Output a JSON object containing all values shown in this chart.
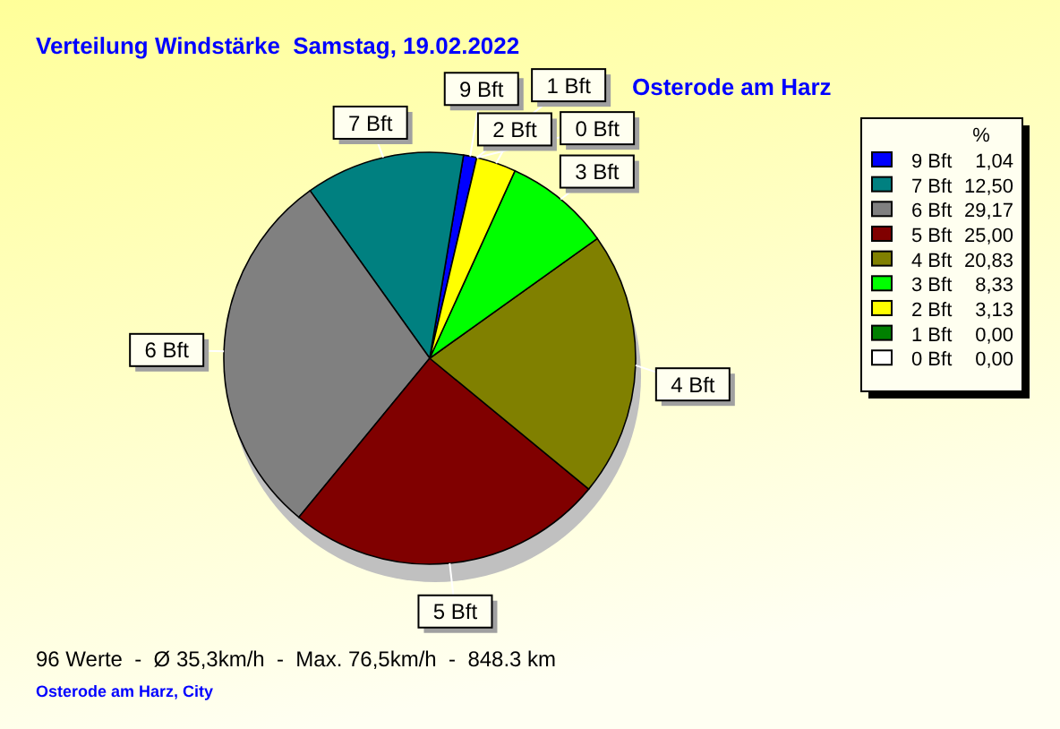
{
  "chart_data": {
    "type": "pie",
    "title": "Verteilung Windstärke  Samstag, 19.02.2022",
    "subtitle": "Osterode am Harz",
    "categories": [
      "9 Bft",
      "7 Bft",
      "6 Bft",
      "5 Bft",
      "4 Bft",
      "3 Bft",
      "2 Bft",
      "1 Bft",
      "0 Bft"
    ],
    "values": [
      1.04,
      12.5,
      29.17,
      25,
      20.83,
      8.33,
      3.13,
      0,
      0
    ],
    "value_labels": [
      "1,04",
      "12,50",
      "29,17",
      "25,00",
      "20,83",
      "8,33",
      "3,13",
      "0,00",
      "0,00"
    ],
    "colors": [
      "#0000ff",
      "#008080",
      "#808080",
      "#800000",
      "#808000",
      "#00ff00",
      "#ffff00",
      "#008000",
      "#ffffff"
    ],
    "legend": "top right",
    "legend_title": "%",
    "annotations": [
      "96 Werte  -  Ø 35,3km/h  -  Max. 76,5km/h  -  848.3 km",
      "Osterode am Harz, City"
    ]
  }
}
